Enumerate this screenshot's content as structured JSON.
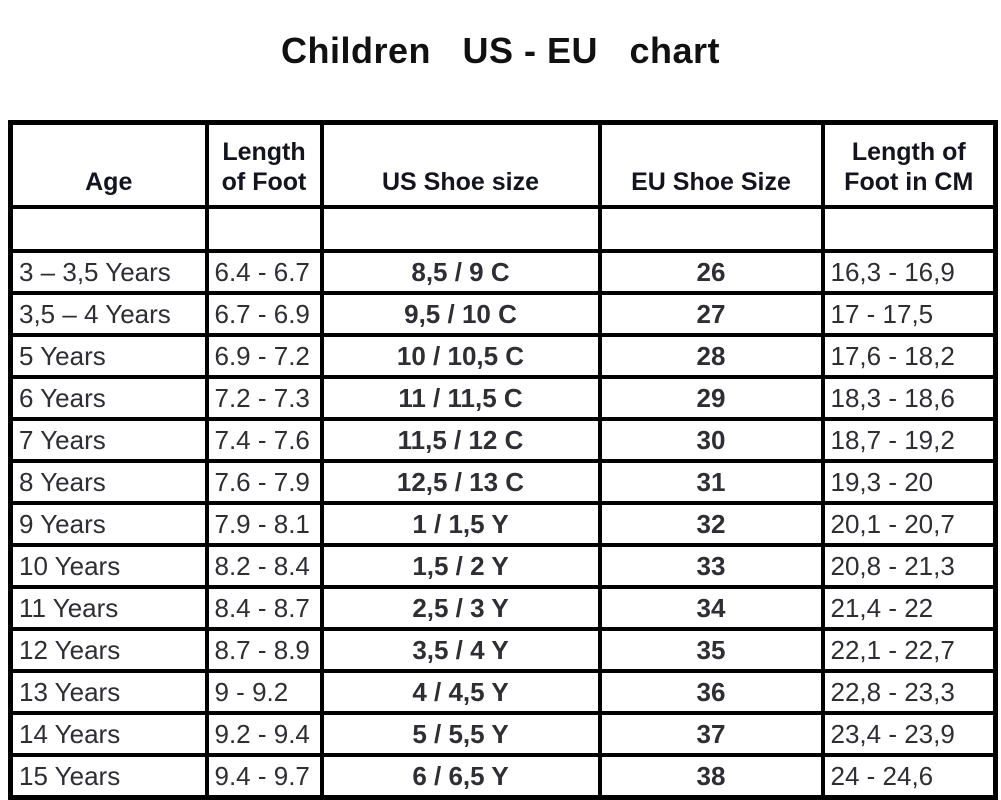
{
  "title": "Children   US - EU   chart",
  "table": {
    "headers_display": [
      "Age",
      "Length\nof Foot",
      "US Shoe size",
      "EU Shoe Size",
      "Length of\nFoot in CM"
    ]
  },
  "chart_data": {
    "type": "table",
    "title": "Children US - EU chart",
    "columns": [
      "Age",
      "Length of Foot",
      "US Shoe size",
      "EU Shoe Size",
      "Length of Foot in CM"
    ],
    "rows": [
      [
        "3 – 3,5 Years",
        "6.4 - 6.7",
        "8,5 / 9 C",
        "26",
        "16,3 - 16,9"
      ],
      [
        "3,5 – 4 Years",
        "6.7 - 6.9",
        "9,5 / 10 C",
        "27",
        "17 - 17,5"
      ],
      [
        "5 Years",
        "6.9 - 7.2",
        "10 / 10,5 C",
        "28",
        "17,6 - 18,2"
      ],
      [
        "6 Years",
        "7.2 - 7.3",
        "11 / 11,5 C",
        "29",
        "18,3 - 18,6"
      ],
      [
        "7 Years",
        "7.4 - 7.6",
        "11,5 / 12 C",
        "30",
        "18,7 - 19,2"
      ],
      [
        "8 Years",
        "7.6 - 7.9",
        "12,5 / 13 C",
        "31",
        "19,3 - 20"
      ],
      [
        "9 Years",
        "7.9 - 8.1",
        "1 / 1,5 Y",
        "32",
        "20,1 - 20,7"
      ],
      [
        "10 Years",
        "8.2 - 8.4",
        "1,5 / 2 Y",
        "33",
        "20,8 - 21,3"
      ],
      [
        "11 Years",
        "8.4 - 8.7",
        "2,5 / 3 Y",
        "34",
        "21,4 - 22"
      ],
      [
        "12 Years",
        "8.7 - 8.9",
        "3,5 / 4 Y",
        "35",
        "22,1 - 22,7"
      ],
      [
        "13 Years",
        "9 - 9.2",
        "4 / 4,5 Y",
        "36",
        "22,8 - 23,3"
      ],
      [
        "14 Years",
        "9.2 - 9.4",
        "5 / 5,5 Y",
        "37",
        "23,4 - 23,9"
      ],
      [
        "15 Years",
        "9.4 - 9.7",
        "6 / 6,5 Y",
        "38",
        "24 - 24,6"
      ]
    ]
  }
}
